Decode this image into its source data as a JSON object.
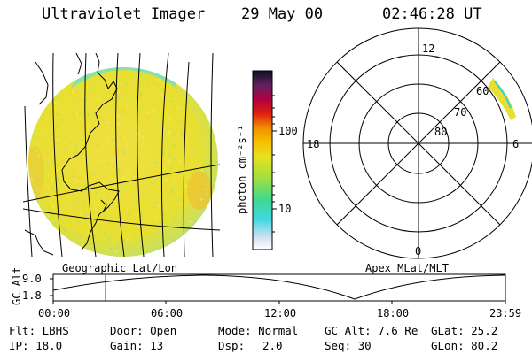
{
  "header": {
    "title": "Ultraviolet Imager",
    "date": "29 May 00",
    "time": "02:46:28 UT"
  },
  "colorbar": {
    "unit_label": "photon cm⁻²s⁻¹",
    "ticks": [
      "100",
      "10"
    ]
  },
  "polar_plot": {
    "mlt_labels": {
      "top": "12",
      "bottom": "0",
      "left": "18",
      "right": "6"
    },
    "mlat_labels": [
      "60",
      "70",
      "80"
    ]
  },
  "panel_titles": {
    "left": "Geographic Lat/Lon",
    "right": "Apex MLat/MLT"
  },
  "altitude_plot": {
    "ylabel": "GC Alt",
    "yticks": [
      "9.0",
      "1.8"
    ],
    "xticks": [
      "00:00",
      "06:00",
      "12:00",
      "18:00",
      "23:59"
    ],
    "marker_time": "02:46"
  },
  "info": {
    "filter": "Flt: LBHS",
    "ip": "IP: 18.0",
    "door": "Door: Open",
    "gain": "Gain: 13",
    "mode": "Mode: Normal",
    "dsp_label": "Dsp:",
    "dsp_value": "2.0",
    "gc_alt": "GC Alt: 7.6 Re",
    "seq": "Seq: 30",
    "glat": "GLat: 25.2",
    "glon": "GLon: 80.2"
  },
  "colors": {
    "earth_fill": "#e8e040",
    "limb_cyan": "#50e0e0",
    "aurora": "#e8e040",
    "marker": "#d00000"
  }
}
